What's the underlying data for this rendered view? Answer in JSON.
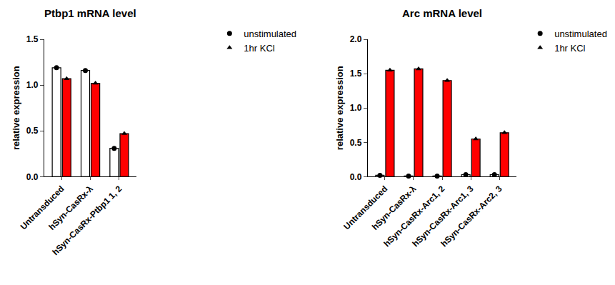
{
  "chart_data": [
    {
      "type": "bar",
      "title": "Ptbp1 mRNA level",
      "y_label": "relative expression",
      "categories": [
        "Untransduced",
        "hSyn-CasRx-λ",
        "hSyn-CasRx-Ptbp1 1, 2"
      ],
      "series": [
        {
          "name": "unstimulated",
          "color": "#ffffff",
          "marker": "circle",
          "values": [
            1.19,
            1.16,
            0.31
          ]
        },
        {
          "name": "1hr KCl",
          "color": "#ff0000",
          "marker": "triangle-up",
          "values": [
            1.07,
            1.02,
            0.47
          ]
        }
      ],
      "ylim": [
        0,
        1.5
      ],
      "yticks": [
        {
          "value": 0,
          "label": "0.0"
        },
        {
          "value": 0.5,
          "label": "0.5"
        },
        {
          "value": 1,
          "label": "1.0"
        },
        {
          "value": 1.5,
          "label": "1.5"
        }
      ],
      "legend": "right",
      "grid": false
    },
    {
      "type": "bar",
      "title": "Arc mRNA level",
      "y_label": "relative expression",
      "categories": [
        "Untransduced",
        "hSyn-CasRx-λ",
        "hSyn-CasRx-Arc1, 2",
        "hSyn-CasRx-Arc1, 3",
        "hSyn-CasRx-Arc2, 3"
      ],
      "series": [
        {
          "name": "unstimulated",
          "color": "#ffffff",
          "marker": "circle",
          "values": [
            0.02,
            0.01,
            0.01,
            0.03,
            0.03
          ]
        },
        {
          "name": "1hr KCl",
          "color": "#ff0000",
          "marker": "triangle-up",
          "values": [
            1.55,
            1.57,
            1.4,
            0.55,
            0.64
          ]
        }
      ],
      "ylim": [
        0,
        2
      ],
      "yticks": [
        {
          "value": 0,
          "label": "0.0"
        },
        {
          "value": 0.5,
          "label": "0.5"
        },
        {
          "value": 1,
          "label": "1.0"
        },
        {
          "value": 1.5,
          "label": "1.5"
        },
        {
          "value": 2,
          "label": "2.0"
        }
      ],
      "legend": "right",
      "grid": false
    }
  ]
}
